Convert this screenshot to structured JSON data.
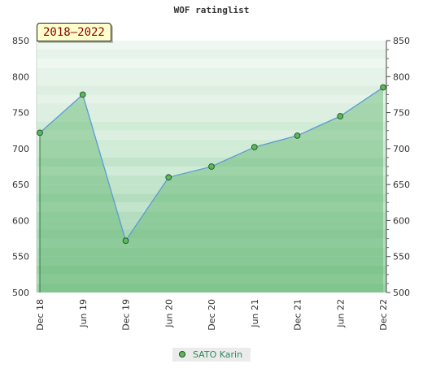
{
  "header": {
    "title": "WOF ratinglist",
    "period_badge": "2018–2022"
  },
  "chart_data": {
    "type": "line",
    "title": "WOF ratinglist",
    "xlabel": "",
    "ylabel": "",
    "x": [
      "Dec 18",
      "Jun 19",
      "Dec 19",
      "Jun 20",
      "Dec 20",
      "Jun 21",
      "Dec 21",
      "Jun 22",
      "Dec 22"
    ],
    "ylim": [
      500,
      850
    ],
    "yticks": [
      500,
      550,
      600,
      650,
      700,
      750,
      800,
      850
    ],
    "series": [
      {
        "name": "SATO Karin",
        "values": [
          722,
          775,
          572,
          660,
          675,
          702,
          718,
          745,
          785
        ],
        "color": "#5b9bd5",
        "marker_color": "#5cb85c"
      }
    ],
    "grid": true,
    "legend_position": "bottom-center",
    "colors": {
      "area_fill": "#5fb56f",
      "band_dark": "#b3ddbe",
      "band_light": "#dcefe1"
    }
  }
}
